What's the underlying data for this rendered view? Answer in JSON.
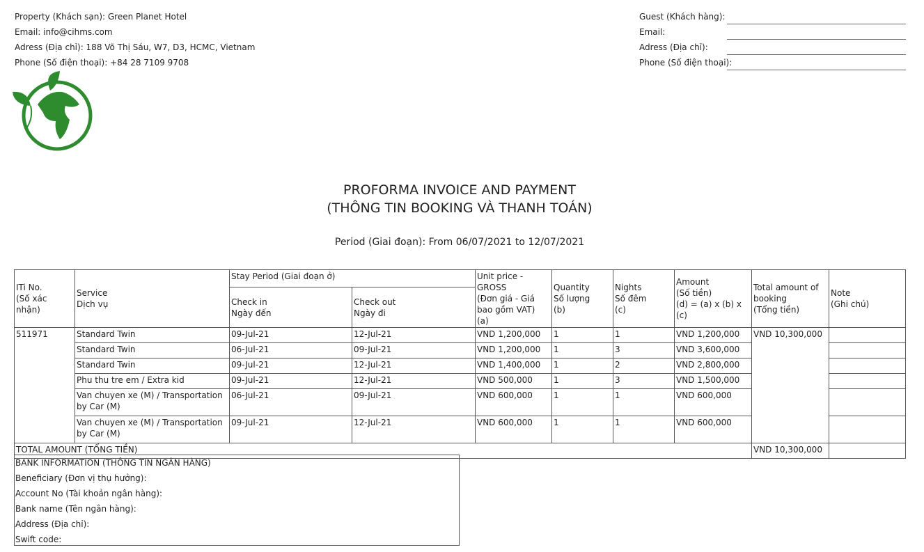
{
  "property": {
    "lines": [
      "Property (Khách sạn): Green Planet Hotel",
      "Email: info@cihms.com",
      "Adress (Địa chỉ): 188 Võ Thị Sáu, W7, D3, HCMC, Vietnam",
      "Phone (Số điện thoại): +84 28 7109 9708"
    ]
  },
  "guest": {
    "labels": [
      "Guest (Khách hàng):",
      "Email:",
      "Adress (Địa chỉ):",
      "Phone (Số điện thoại):"
    ]
  },
  "logo": {
    "icon": "globe-leaf-logo",
    "color": "#2e8b2e"
  },
  "title": {
    "line1": "PROFORMA INVOICE AND PAYMENT",
    "line2": "(THÔNG TIN BOOKING VÀ THANH TOÁN)"
  },
  "period": "Period (Giai đoạn): From 06/07/2021 to 12/07/2021",
  "table": {
    "headers": {
      "iti": "ITi No.\n(Số xác nhận)",
      "service": "Service\nDịch vụ",
      "stay": "Stay Period (Giai đoạn ở)",
      "checkin": "Check in\nNgày đến",
      "checkout": "Check out\nNgày đi",
      "unit": "Unit price - GROSS\n(Đơn giá - Giá bao gồm VAT)\n(a)",
      "qty": "Quantity\nSố lượng\n(b)",
      "nights": "Nights\nSố đêm\n(c)",
      "amount": "Amount\n(Số tiền)\n(d) = (a) x (b) x (c)",
      "total": "Total amount of booking\n(Tổng tiền)",
      "note": "Note\n(Ghi chú)"
    },
    "iti_no": "511971",
    "booking_total": "VND 10,300,000",
    "rows": [
      {
        "service": "Standard Twin",
        "checkin": "09-Jul-21",
        "checkout": "12-Jul-21",
        "unit": "VND 1,200,000",
        "qty": "1",
        "nights": "1",
        "amount": "VND 1,200,000",
        "note": ""
      },
      {
        "service": "Standard Twin",
        "checkin": "06-Jul-21",
        "checkout": "09-Jul-21",
        "unit": "VND 1,200,000",
        "qty": "1",
        "nights": "3",
        "amount": "VND 3,600,000",
        "note": ""
      },
      {
        "service": "Standard Twin",
        "checkin": "09-Jul-21",
        "checkout": "12-Jul-21",
        "unit": "VND 1,400,000",
        "qty": "1",
        "nights": "2",
        "amount": "VND 2,800,000",
        "note": ""
      },
      {
        "service": "Phu thu tre em / Extra kid",
        "checkin": "09-Jul-21",
        "checkout": "12-Jul-21",
        "unit": "VND 500,000",
        "qty": "1",
        "nights": "3",
        "amount": "VND 1,500,000",
        "note": ""
      },
      {
        "service": "Van chuyen xe (M) / Transportation by Car (M)",
        "checkin": "06-Jul-21",
        "checkout": "09-Jul-21",
        "unit": "VND 600,000",
        "qty": "1",
        "nights": "1",
        "amount": "VND 600,000",
        "note": ""
      },
      {
        "service": "Van chuyen xe (M) / Transportation by Car (M)",
        "checkin": "09-Jul-21",
        "checkout": "12-Jul-21",
        "unit": "VND 600,000",
        "qty": "1",
        "nights": "1",
        "amount": "VND 600,000",
        "note": ""
      }
    ],
    "total_label": "TOTAL AMOUNT (TỔNG TIỀN)",
    "total_value": "VND 10,300,000"
  },
  "bank": {
    "lines": [
      "BANK INFORMATION (THÔNG TIN NGÂN HÀNG)",
      "Beneficiary (Đơn vị thụ hưởng):",
      "Account No (Tài khoản ngân hàng):",
      "Bank name (Tên ngân hàng):",
      "Address (Địa chỉ):",
      "Swift code:"
    ]
  }
}
